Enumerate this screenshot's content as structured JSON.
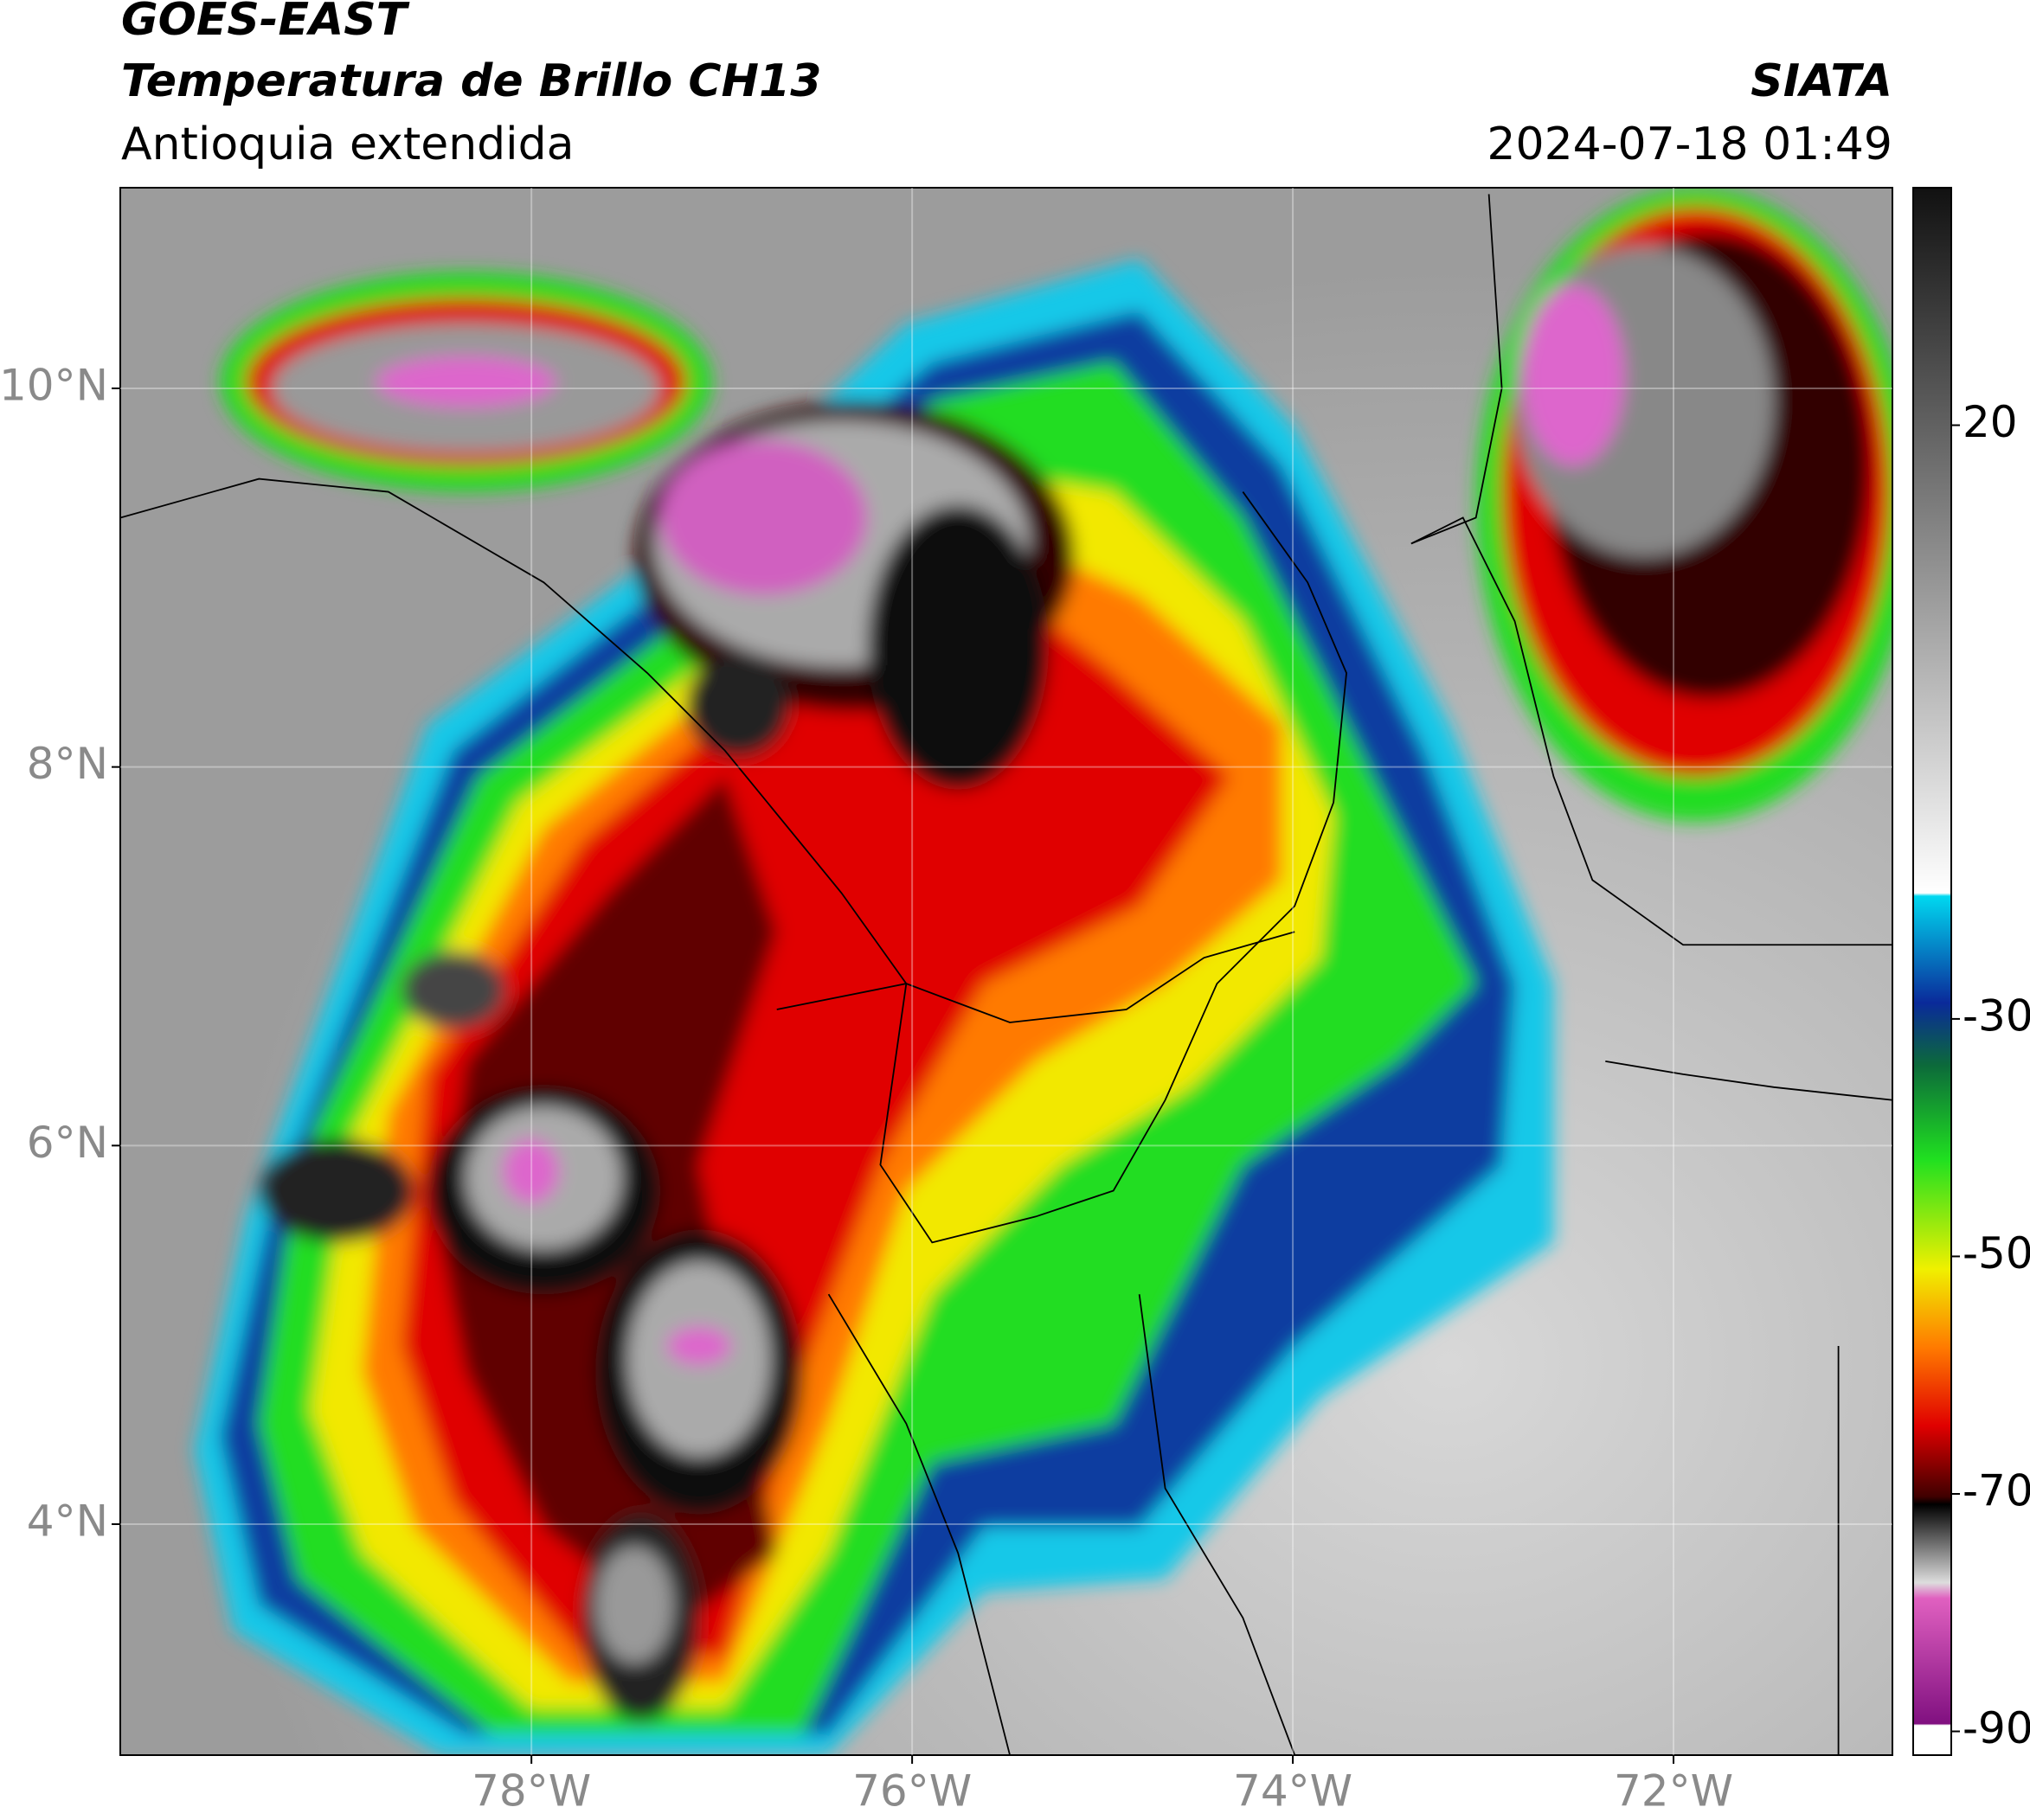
{
  "header": {
    "title": "GOES-EAST",
    "subtitle": "Temperatura de Brillo CH13",
    "region": "Antioquia extendida",
    "source": "SIATA",
    "datetime": "2024-07-18 01:49"
  },
  "map": {
    "xlim": [
      -80.16,
      -70.85
    ],
    "ylim": [
      2.78,
      11.06
    ],
    "grid": true,
    "xticks": [
      {
        "value": -78,
        "label": "78°W"
      },
      {
        "value": -76,
        "label": "76°W"
      },
      {
        "value": -74,
        "label": "74°W"
      },
      {
        "value": -72,
        "label": "72°W"
      }
    ],
    "yticks": [
      {
        "value": 10,
        "label": "10°N"
      },
      {
        "value": 8,
        "label": "8°N"
      },
      {
        "value": 6,
        "label": "6°N"
      },
      {
        "value": 4,
        "label": "4°N"
      }
    ]
  },
  "colorbar": {
    "lim": [
      -92,
      40
    ],
    "ticks": [
      20,
      -30,
      -50,
      -70,
      -90
    ]
  }
}
